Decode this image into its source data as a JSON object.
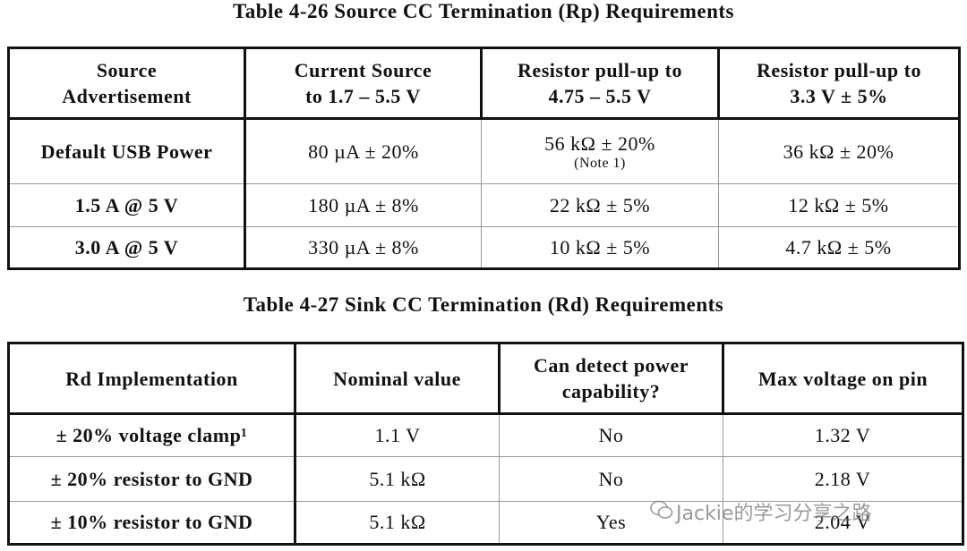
{
  "tables": [
    {
      "title": "Table 4-26  Source CC Termination (Rp) Requirements",
      "header": [
        [
          "Source",
          "Advertisement"
        ],
        [
          "Current Source",
          "to 1.7 – 5.5 V"
        ],
        [
          "Resistor pull-up to",
          "4.75 – 5.5 V"
        ],
        [
          "Resistor pull-up to",
          "3.3 V ± 5%"
        ]
      ],
      "rows": [
        [
          "Default USB Power",
          "80 µA ± 20%",
          {
            "text": "56 kΩ ± 20%",
            "note": "(Note 1)"
          },
          "36 kΩ ± 20%"
        ],
        [
          "1.5 A @ 5 V",
          "180 µA ± 8%",
          "22 kΩ ± 5%",
          "12 kΩ ± 5%"
        ],
        [
          "3.0 A @ 5 V",
          "330 µA ± 8%",
          "10 kΩ ± 5%",
          "4.7 kΩ ± 5%"
        ]
      ]
    },
    {
      "title": "Table 4-27  Sink CC Termination (Rd) Requirements",
      "header": [
        [
          "Rd Implementation"
        ],
        [
          "Nominal value"
        ],
        [
          "Can detect power",
          "capability?"
        ],
        [
          "Max voltage on pin"
        ]
      ],
      "rows": [
        [
          "± 20% voltage clamp¹",
          "1.1 V",
          "No",
          "1.32 V"
        ],
        [
          "± 20% resistor to GND",
          "5.1 kΩ",
          "No",
          "2.18 V"
        ],
        [
          "± 10% resistor to GND",
          "5.1 kΩ",
          "Yes",
          "2.04 V"
        ]
      ]
    }
  ],
  "watermark": "Jackie的学习分享之路"
}
